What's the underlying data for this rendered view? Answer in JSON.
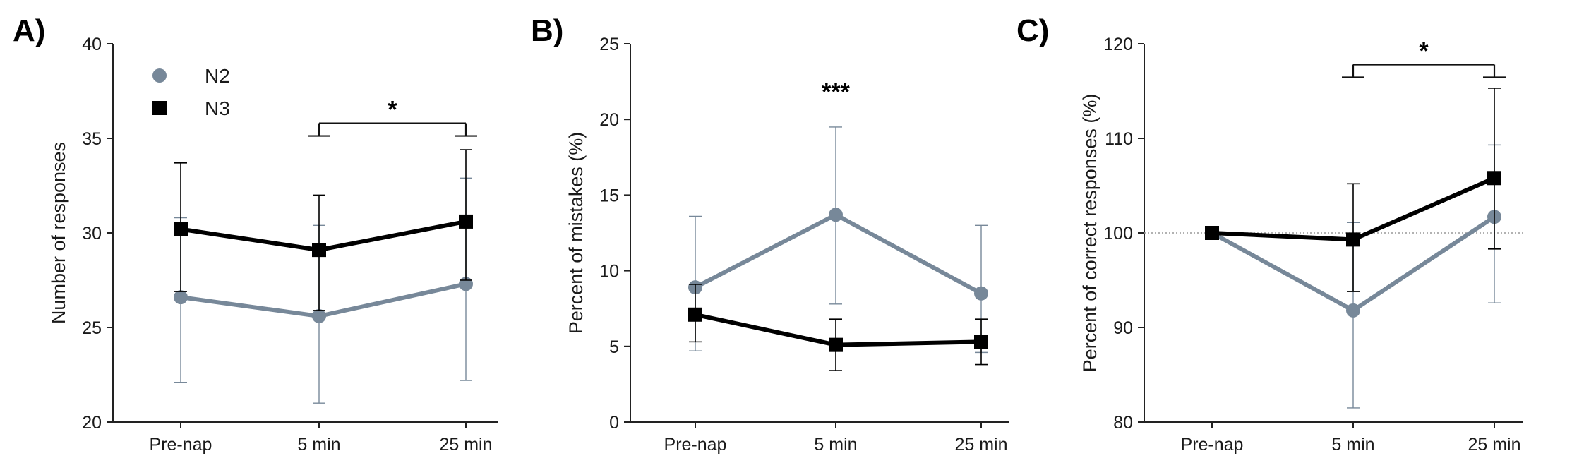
{
  "colors": {
    "N2": "#778899",
    "N3": "#000000",
    "axis": "#222222",
    "reference_line": "#999999"
  },
  "legend": {
    "N2": "N2",
    "N3": "N3",
    "placement": "top-left"
  },
  "chart_data": [
    {
      "type": "line",
      "panel_label": "A)",
      "ylabel": "Number of responses",
      "xlabel": "",
      "categories": [
        "Pre-nap",
        "5 min",
        "25 min"
      ],
      "ylim": [
        20,
        40
      ],
      "yticks": [
        "20",
        "25",
        "30",
        "35",
        "40"
      ],
      "grid": false,
      "series": [
        {
          "name": "N2",
          "marker": "circle",
          "values": [
            26.6,
            25.6,
            27.3
          ],
          "err_low": [
            22.1,
            21.0,
            22.2
          ],
          "err_high": [
            30.8,
            30.4,
            32.9
          ]
        },
        {
          "name": "N3",
          "marker": "square",
          "values": [
            30.2,
            29.1,
            30.6
          ],
          "err_low": [
            26.9,
            25.9,
            27.5
          ],
          "err_high": [
            33.7,
            32.0,
            34.4
          ]
        }
      ],
      "significance": [
        {
          "from": 1,
          "to": 2,
          "label": "*",
          "bracket_y": 35.8
        }
      ]
    },
    {
      "type": "line",
      "panel_label": "B)",
      "ylabel": "Percent of mistakes (%)",
      "xlabel": "",
      "categories": [
        "Pre-nap",
        "5 min",
        "25 min"
      ],
      "ylim": [
        0,
        25
      ],
      "yticks": [
        "0",
        "5",
        "10",
        "15",
        "20",
        "25"
      ],
      "grid": false,
      "series": [
        {
          "name": "N2",
          "marker": "circle",
          "values": [
            8.9,
            13.7,
            8.5
          ],
          "err_low": [
            4.7,
            7.8,
            4.6
          ],
          "err_high": [
            13.6,
            19.5,
            13.0
          ]
        },
        {
          "name": "N3",
          "marker": "square",
          "values": [
            7.1,
            5.1,
            5.3
          ],
          "err_low": [
            5.3,
            3.4,
            3.8
          ],
          "err_high": [
            9.1,
            6.8,
            6.8
          ]
        }
      ],
      "annotations": [
        {
          "category": 1,
          "label": "***",
          "y": 21.3
        }
      ]
    },
    {
      "type": "line",
      "panel_label": "C)",
      "ylabel": "Percent of correct responses (%)",
      "xlabel": "",
      "categories": [
        "Pre-nap",
        "5 min",
        "25 min"
      ],
      "ylim": [
        80,
        120
      ],
      "yticks": [
        "80",
        "90",
        "100",
        "110",
        "120"
      ],
      "grid": false,
      "reference_line": 100,
      "series": [
        {
          "name": "N2",
          "marker": "circle",
          "values": [
            100.0,
            91.8,
            101.7
          ],
          "err_low": [
            null,
            81.5,
            92.6
          ],
          "err_high": [
            null,
            101.1,
            109.3
          ]
        },
        {
          "name": "N3",
          "marker": "square",
          "values": [
            100.0,
            99.3,
            105.8
          ],
          "err_low": [
            null,
            93.8,
            98.3
          ],
          "err_high": [
            null,
            105.2,
            115.3
          ]
        }
      ],
      "significance": [
        {
          "from": 1,
          "to": 2,
          "label": "*",
          "bracket_y": 117.8
        }
      ]
    }
  ]
}
